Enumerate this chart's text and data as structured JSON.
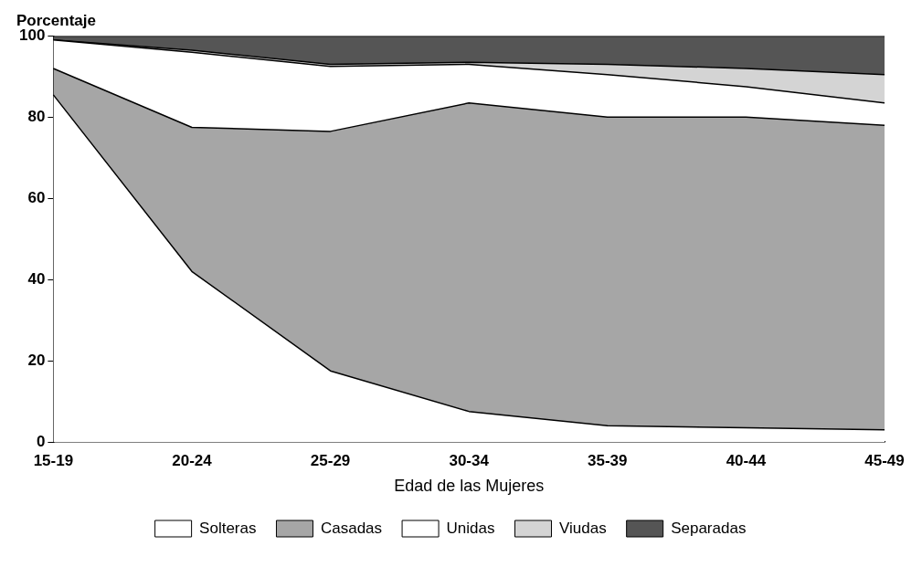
{
  "chart_data": {
    "type": "area",
    "stacked": true,
    "ylabel": "Porcentaje",
    "xlabel": "Edad de las Mujeres",
    "categories": [
      "15-19",
      "20-24",
      "25-29",
      "30-34",
      "35-39",
      "40-44",
      "45-49"
    ],
    "ylim": [
      0,
      100
    ],
    "yticks": [
      0,
      20,
      40,
      60,
      80,
      100
    ],
    "grid": false,
    "legend": "bottom",
    "series": [
      {
        "name": "Solteras",
        "color": "#ffffff",
        "values": [
          85.5,
          42,
          17.5,
          7.5,
          4,
          3.5,
          3
        ]
      },
      {
        "name": "Casadas",
        "color": "#a6a6a6",
        "values": [
          6.5,
          35.5,
          59,
          76,
          76,
          76.5,
          75
        ]
      },
      {
        "name": "Unidas",
        "color": "#ffffff",
        "values": [
          7,
          18.5,
          16,
          9.5,
          10.5,
          7.5,
          5.5
        ]
      },
      {
        "name": "Viudas",
        "color": "#d4d4d4",
        "values": [
          0,
          0.5,
          0.5,
          0.5,
          2.5,
          4.5,
          7
        ]
      },
      {
        "name": "Separadas",
        "color": "#555555",
        "values": [
          1,
          3.5,
          7,
          6.5,
          7,
          8,
          9.5
        ]
      }
    ]
  }
}
